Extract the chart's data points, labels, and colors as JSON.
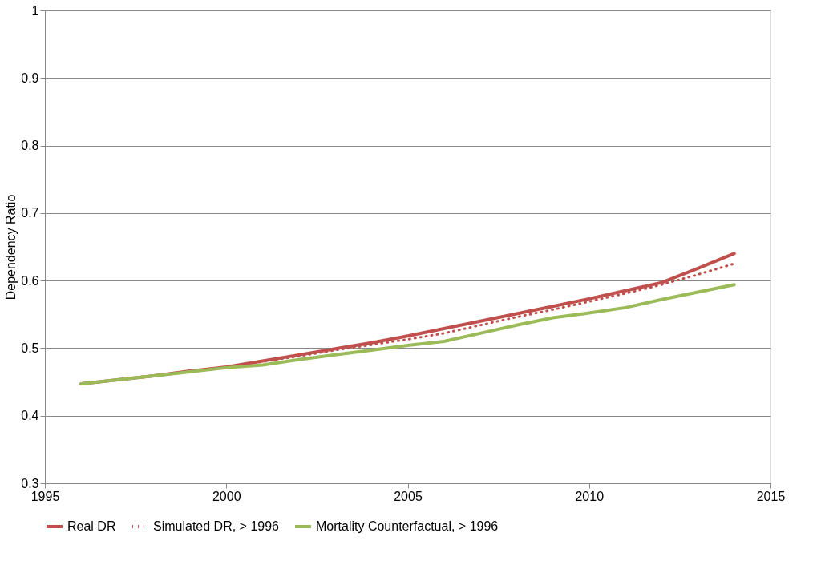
{
  "chart_data": {
    "type": "line",
    "ylabel": "Dependency Ratio",
    "x": [
      1996,
      1997,
      1998,
      1999,
      2000,
      2001,
      2002,
      2003,
      2004,
      2005,
      2006,
      2007,
      2008,
      2009,
      2010,
      2011,
      2012,
      2013,
      2014
    ],
    "series": [
      {
        "name": "Real DR",
        "color": "#c0504d",
        "line_style": "solid",
        "values": [
          0.447,
          0.453,
          0.459,
          0.466,
          0.472,
          0.481,
          0.49,
          0.499,
          0.508,
          0.518,
          0.529,
          0.54,
          0.551,
          0.562,
          0.573,
          0.585,
          0.597,
          0.618,
          0.64
        ]
      },
      {
        "name": "Simulated DR, > 1996",
        "color": "#c0504d",
        "line_style": "dotted",
        "values": [
          0.447,
          0.453,
          0.459,
          0.466,
          0.472,
          0.48,
          0.488,
          0.497,
          0.505,
          0.513,
          0.522,
          0.534,
          0.546,
          0.557,
          0.569,
          0.581,
          0.594,
          0.609,
          0.625
        ]
      },
      {
        "name": "Mortality Counterfactual, > 1996",
        "color": "#9bbb59",
        "line_style": "solid",
        "values": [
          0.447,
          0.453,
          0.459,
          0.465,
          0.471,
          0.475,
          0.483,
          0.49,
          0.497,
          0.504,
          0.51,
          0.522,
          0.534,
          0.545,
          0.552,
          0.56,
          0.572,
          0.583,
          0.594
        ]
      }
    ],
    "xlim": [
      1995,
      2015
    ],
    "xticks": [
      1995,
      2000,
      2005,
      2010,
      2015
    ],
    "ylim": [
      0.3,
      1
    ],
    "yticks": [
      0.3,
      0.4,
      0.5,
      0.6,
      0.7,
      0.8,
      0.9,
      1
    ],
    "grid": "y",
    "legend": "bottom",
    "marker": "none"
  }
}
